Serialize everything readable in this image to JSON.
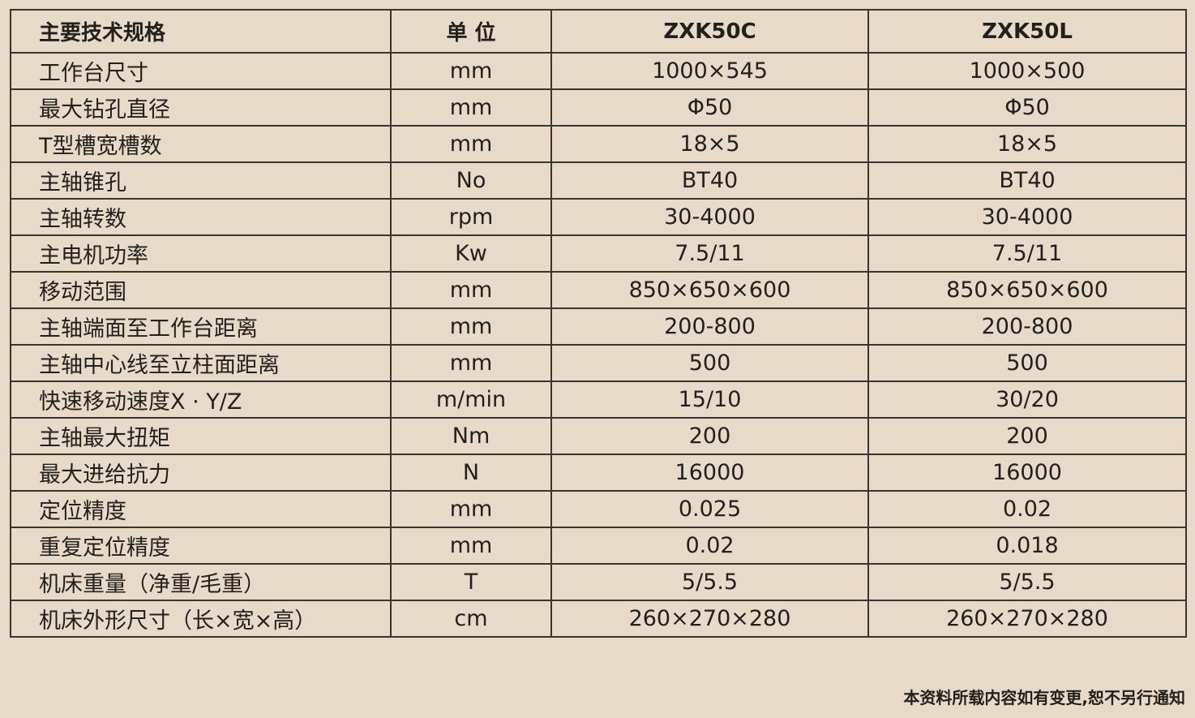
{
  "header": [
    "主要技术规格",
    "单 位",
    "ZXK50C",
    "ZXK50L"
  ],
  "rows": [
    [
      "工作台尺寸",
      "mm",
      "1000×545",
      "1000×500"
    ],
    [
      "最大钻孔直径",
      "mm",
      "Φ50",
      "Φ50"
    ],
    [
      "T型槽宽槽数",
      "mm",
      "18×5",
      "18×5"
    ],
    [
      "主轴锥孔",
      "No",
      "BT40",
      "BT40"
    ],
    [
      "主轴转数",
      "rpm",
      "30-4000",
      "30-4000"
    ],
    [
      "主电机功率",
      "Kw",
      "7.5/11",
      "7.5/11"
    ],
    [
      "移动范围",
      "mm",
      "850×650×600",
      "850×650×600"
    ],
    [
      "主轴端面至工作台距离",
      "mm",
      "200-800",
      "200-800"
    ],
    [
      "主轴中心线至立柱面距离",
      "mm",
      "500",
      "500"
    ],
    [
      "快速移动速度X · Y/Z",
      "m/min",
      "15/10",
      "30/20"
    ],
    [
      "主轴最大扭矩",
      "Nm",
      "200",
      "200"
    ],
    [
      "最大进给抗力",
      "N",
      "16000",
      "16000"
    ],
    [
      "定位精度",
      "mm",
      "0.025",
      "0.02"
    ],
    [
      "重复定位精度",
      "mm",
      "0.02",
      "0.018"
    ],
    [
      "机床重量（净重/毛重）",
      "T",
      "5/5.5",
      "5/5.5"
    ],
    [
      "机床外形尺寸（长×宽×高）",
      "cm",
      "260×270×280",
      "260×270×280"
    ]
  ],
  "footer_note": "本资料所载内容如有变更,恕不另行通知"
}
